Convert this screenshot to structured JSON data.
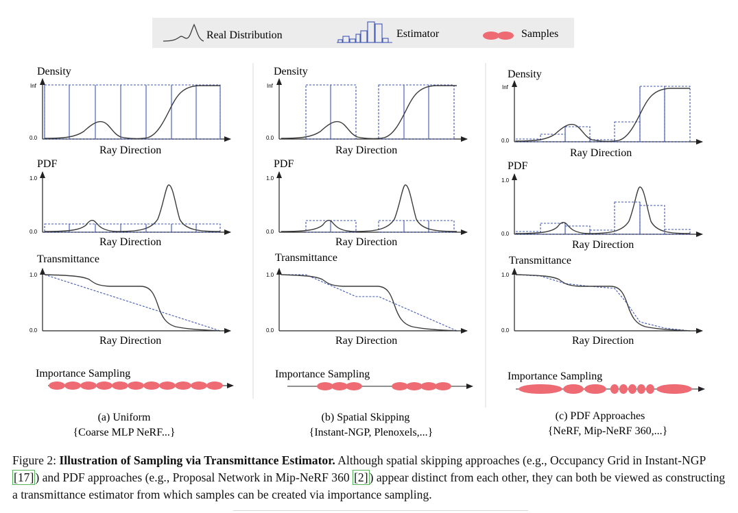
{
  "legend": {
    "real_label": "Real Distribution",
    "estimator_label": "Estimator",
    "samples_label": "Samples"
  },
  "panel_labels": {
    "density_title": "Density",
    "pdf_title": "PDF",
    "transmittance_title": "Transmittance",
    "x_axis_label": "Ray Direction",
    "importance_label": "Importance Sampling",
    "tick_inf": "Inf",
    "tick_one": "1.0",
    "tick_zero": "0.0"
  },
  "columns": [
    {
      "caption_line1": "(a) Uniform",
      "caption_line2": "{Coarse MLP NeRF...}"
    },
    {
      "caption_line1": "(b) Spatial Skipping",
      "caption_line2": "{Instant-NGP, Plenoxels,...}"
    },
    {
      "caption_line1": "(c) PDF Approaches",
      "caption_line2": "{NeRF, Mip-NeRF 360,...}"
    }
  ],
  "colors": {
    "real_curve": "#3a3a3a",
    "estimator": "#3f56b5",
    "samples": "#ee6b74",
    "legend_bg": "#ececec",
    "axis": "#222222"
  },
  "chart_data": [
    {
      "type": "line",
      "title": "Density",
      "xlabel": "Ray Direction",
      "ylabel": "Density",
      "y_ticks": [
        "0.0",
        "Inf"
      ],
      "panels": [
        {
          "column": "(a) Uniform",
          "estimator": "uniform bins (8), all at max"
        },
        {
          "column": "(b) Spatial Skipping",
          "estimator": "occupied regions only at max"
        },
        {
          "column": "(c) PDF Approaches",
          "estimator": "piecewise constant bins following density"
        }
      ]
    },
    {
      "type": "line",
      "title": "PDF",
      "xlabel": "Ray Direction",
      "ylabel": "PDF",
      "y_ticks": [
        "0.0",
        "1.0"
      ]
    },
    {
      "type": "line",
      "title": "Transmittance",
      "xlabel": "Ray Direction",
      "ylabel": "Transmittance",
      "y_ticks": [
        "0.0",
        "1.0"
      ]
    }
  ],
  "caption": {
    "prefix": "Figure 2: ",
    "bold_title": "Illustration of Sampling via Transmittance Estimator.",
    "part1": " Although spatial skipping approaches (e.g., Occupancy Grid in Instant-NGP ",
    "cite1": "[17]",
    "part2": ") and PDF approaches (e.g., Proposal Network in Mip-NeRF 360 ",
    "cite2": "[2]",
    "part3": ") appear distinct from each other, they can both be viewed as constructing a transmittance estimator from which samples can be created via importance sampling."
  }
}
